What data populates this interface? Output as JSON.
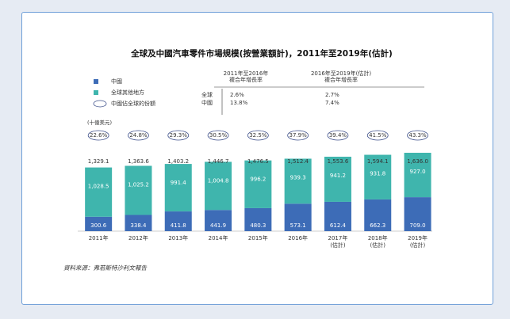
{
  "chart_data": {
    "type": "bar",
    "stacked": true,
    "title": "全球及中國汽車零件市場規模(按營業額計)，2011年至2019年(估計)",
    "unit": "(十億美元)",
    "categories": [
      "2011年",
      "2012年",
      "2013年",
      "2014年",
      "2015年",
      "2016年",
      "2017年\n(估計)",
      "2018年\n(估計)",
      "2019年\n(估計)"
    ],
    "series": [
      {
        "name": "中國",
        "color": "#3d6cb7",
        "values": [
          300.6,
          338.4,
          411.8,
          441.9,
          480.3,
          573.1,
          612.4,
          662.3,
          709.0
        ],
        "value_labels": [
          "300.6",
          "338.4",
          "411.8",
          "441.9",
          "480.3",
          "573.1",
          "612.4",
          "662.3",
          "709.0"
        ]
      },
      {
        "name": "全球其他地方",
        "color": "#3fb5ad",
        "values": [
          1028.5,
          1025.2,
          991.4,
          1004.8,
          996.2,
          939.3,
          941.2,
          931.8,
          927.0
        ],
        "value_labels": [
          "1,028.5",
          "1,025.2",
          "991.4",
          "1,004.8",
          "996.2",
          "939.3",
          "941.2",
          "931.8",
          "927.0"
        ]
      }
    ],
    "totals": [
      {
        "value": 1329.1,
        "label": "1,329.1"
      },
      {
        "value": 1363.6,
        "label": "1,363.6"
      },
      {
        "value": 1403.2,
        "label": "1,403.2"
      },
      {
        "value": 1446.7,
        "label": "1,446.7"
      },
      {
        "value": 1476.5,
        "label": "1,476.5"
      },
      {
        "value": 1512.4,
        "label": "1,512.4"
      },
      {
        "value": 1553.6,
        "label": "1,553.6"
      },
      {
        "value": 1594.1,
        "label": "1,594.1"
      },
      {
        "value": 1636.0,
        "label": "1,636.0"
      }
    ],
    "share": {
      "name": "中國佔全球的份額",
      "values": [
        22.6,
        24.8,
        29.3,
        30.5,
        32.5,
        37.9,
        39.4,
        41.5,
        43.3
      ],
      "value_labels": [
        "22.6%",
        "24.8%",
        "29.3%",
        "30.5%",
        "32.5%",
        "37.9%",
        "39.4%",
        "41.5%",
        "43.3%"
      ]
    },
    "cagr_table": {
      "columns": [
        [
          "2011年至2016年",
          "複合年增長率"
        ],
        [
          "2016年至2019年(估計)",
          "複合年增長率"
        ]
      ],
      "rows": [
        [
          "全球",
          "2.6%",
          "2.7%"
        ],
        [
          "中國",
          "13.8%",
          "7.4%"
        ]
      ]
    },
    "source": "資料來源：弗若斯特沙利文報告"
  }
}
